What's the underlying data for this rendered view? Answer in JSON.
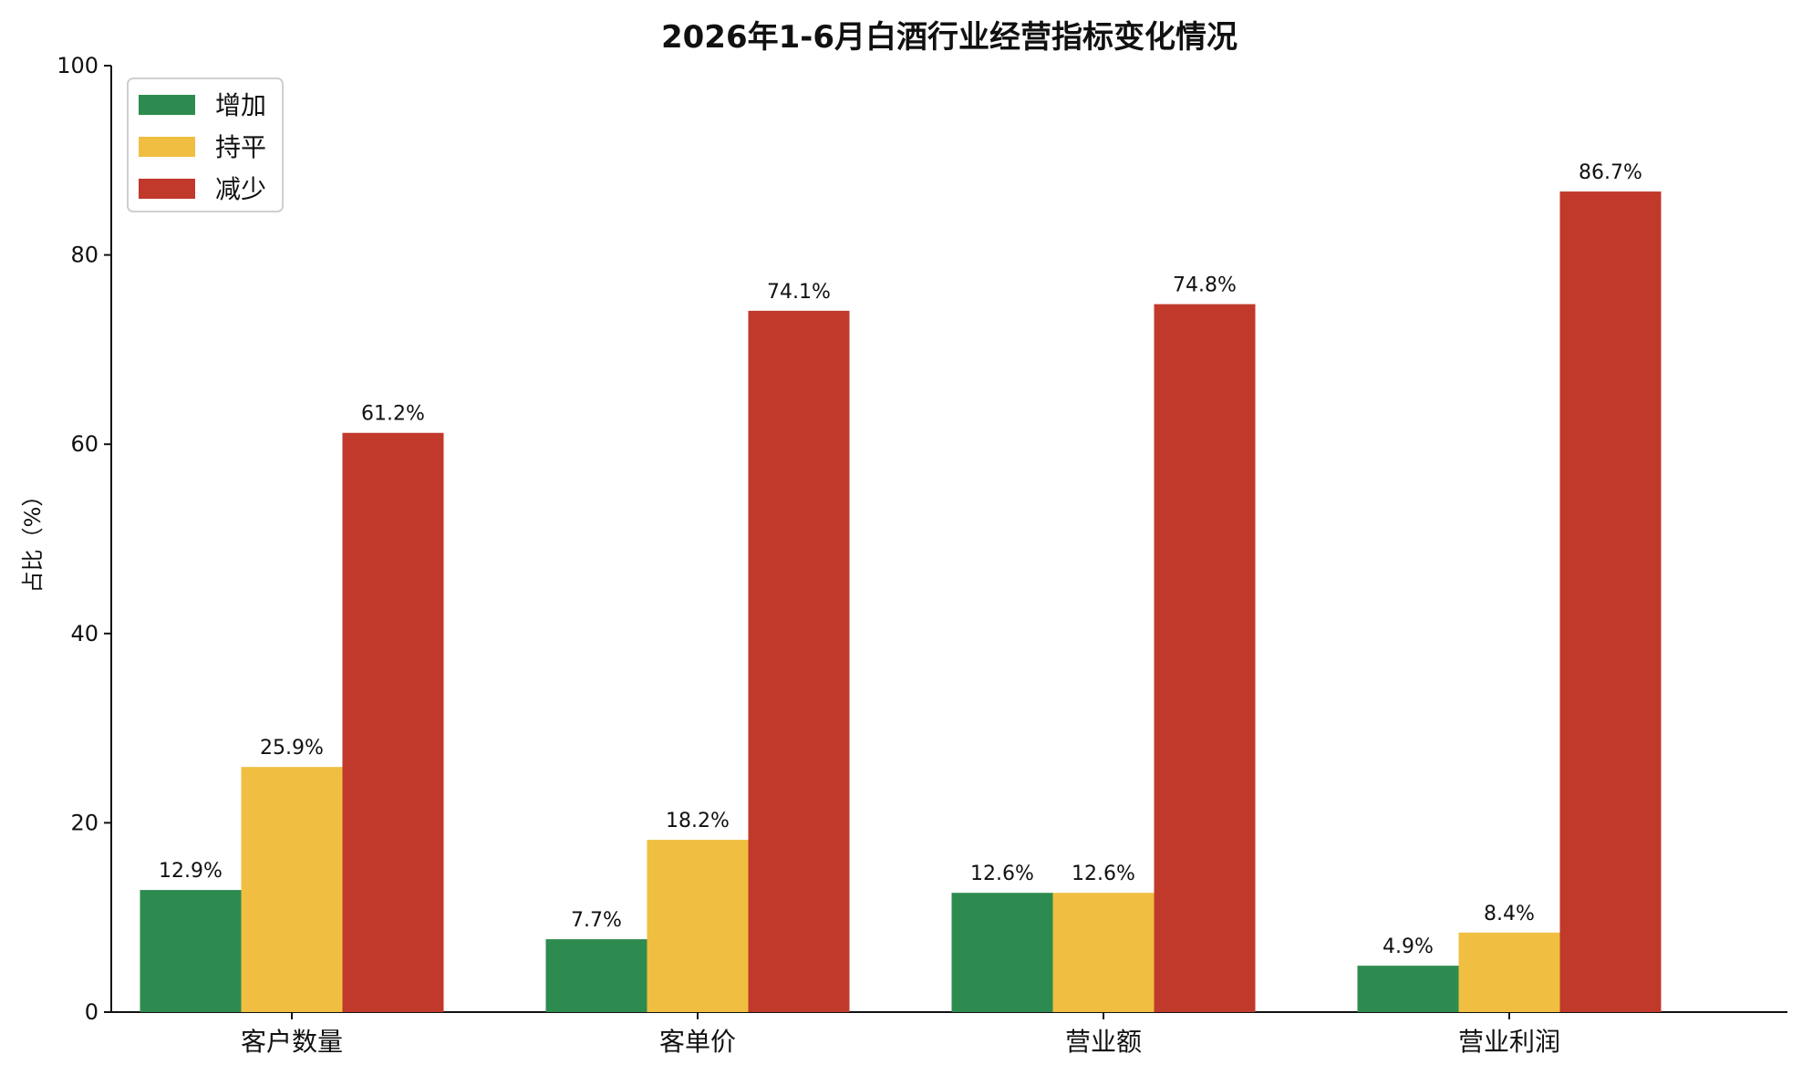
{
  "chart_data": {
    "type": "bar",
    "title": "2026年1-6月白酒行业经营指标变化情况",
    "xlabel": "",
    "ylabel": "占比（%）",
    "ylim": [
      0,
      100
    ],
    "yticks": [
      0,
      20,
      40,
      60,
      80,
      100
    ],
    "categories": [
      "客户数量",
      "客单价",
      "营业额",
      "营业利润"
    ],
    "series": [
      {
        "name": "增加",
        "color": "#2e8b50",
        "values": [
          12.9,
          7.7,
          12.6,
          4.9
        ],
        "labels": [
          "12.9%",
          "7.7%",
          "12.6%",
          "4.9%"
        ]
      },
      {
        "name": "持平",
        "color": "#f0bf41",
        "values": [
          25.9,
          18.2,
          12.6,
          8.4
        ],
        "labels": [
          "25.9%",
          "18.2%",
          "12.6%",
          "8.4%"
        ]
      },
      {
        "name": "减少",
        "color": "#c0392b",
        "values": [
          61.2,
          74.1,
          74.8,
          86.7
        ],
        "labels": [
          "61.2%",
          "74.1%",
          "74.8%",
          "86.7%"
        ]
      }
    ],
    "legend_position": "top-left",
    "grid": false
  }
}
